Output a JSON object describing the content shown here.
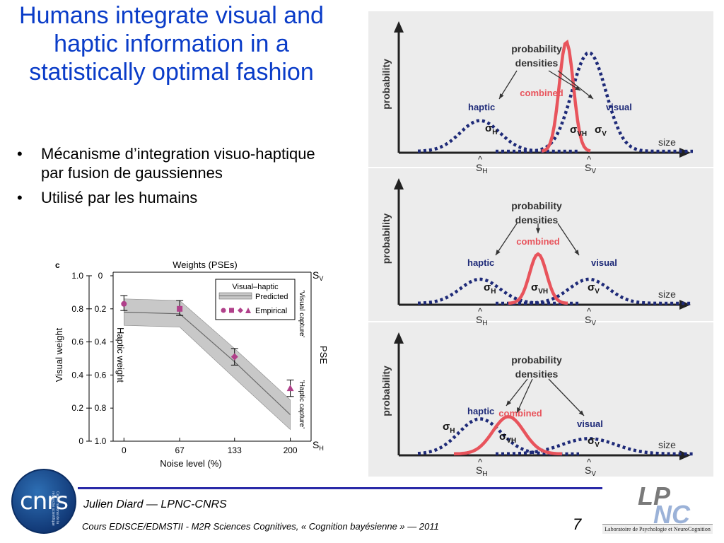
{
  "slide": {
    "title": "Humans integrate visual and haptic information in a statistically optimal fashion",
    "bullets": [
      "Mécanisme d’integration visuo-haptique par fusion de gaussiennes",
      "Utilisé par les humains"
    ],
    "bullet_char": "•"
  },
  "figure_c": {
    "panel_letter": "c",
    "top_title": "Weights (PSEs)",
    "y_left_label": "Visual weight",
    "y_inner_label": "Haptic weight",
    "x_label": "Noise level (%)",
    "right_label": "PSE",
    "right_top_symbol": "S",
    "right_top_sub": "V",
    "right_bottom_symbol": "S",
    "right_bottom_sub": "H",
    "right_upper_annot": "'Visual capture'",
    "right_lower_annot": "'Haptic capture'",
    "legend": {
      "title": "Visual–haptic",
      "predicted": "Predicted",
      "empirical": "Empirical"
    },
    "colors": {
      "band": "#c8c8c8",
      "line": "#6a6a6a",
      "marker": "#b0408a"
    }
  },
  "chart_data": {
    "type": "line",
    "title": "Weights (PSEs)",
    "xlabel": "Noise level (%)",
    "ylabel": "Visual weight",
    "x_ticks": [
      "0",
      "67",
      "133",
      "200"
    ],
    "y_ticks_left": [
      "0",
      "0.2",
      "0.4",
      "0.6",
      "0.8",
      "1.0"
    ],
    "y_ticks_inner": [
      "1.0",
      "0.8",
      "0.6",
      "0.4",
      "0.2",
      "0"
    ],
    "xlim": [
      -13,
      225
    ],
    "ylim": [
      0,
      1
    ],
    "series": [
      {
        "name": "Predicted",
        "x": [
          0,
          67,
          133,
          200
        ],
        "values": [
          0.78,
          0.77,
          0.48,
          0.16
        ],
        "band_low": [
          0.7,
          0.69,
          0.38,
          0.07
        ],
        "band_high": [
          0.86,
          0.85,
          0.56,
          0.25
        ]
      },
      {
        "name": "Empirical",
        "x": [
          0,
          67,
          133,
          200
        ],
        "values": [
          0.83,
          0.8,
          0.51,
          0.32
        ],
        "err_low": [
          0.79,
          0.76,
          0.46,
          0.27
        ],
        "err_high": [
          0.88,
          0.85,
          0.56,
          0.37
        ],
        "markers": [
          "circle",
          "square",
          "diamond",
          "triangle"
        ]
      }
    ]
  },
  "density_panels": {
    "heading_line1": "probability",
    "heading_line2": "densities",
    "y_axis": "probability",
    "x_axis": "size",
    "haptic": "haptic",
    "visual": "visual",
    "combined": "combined",
    "sigma": "σ",
    "sub_h": "H",
    "sub_vh": "VH",
    "sub_v": "V",
    "hat": "^",
    "s_letter": "S",
    "colors": {
      "dotted": "#1e2a78",
      "combined": "#e8545c",
      "axis": "#222222",
      "bg": "#ececec"
    }
  },
  "footer": {
    "logo_left": "cnrs",
    "logo_left_sub": "Centre national de la recherche scientifique",
    "author": "Julien Diard — LPNC-CNRS",
    "course": "Cours EDISCE/EDMSTII - M2R Sciences Cognitives, « Cognition bayésienne » — 2011",
    "page_number": "7",
    "logo_right_a": "LP",
    "logo_right_b": "NC",
    "logo_right_caption": "Laboratoire de Psychologie et NeuroCognition"
  }
}
